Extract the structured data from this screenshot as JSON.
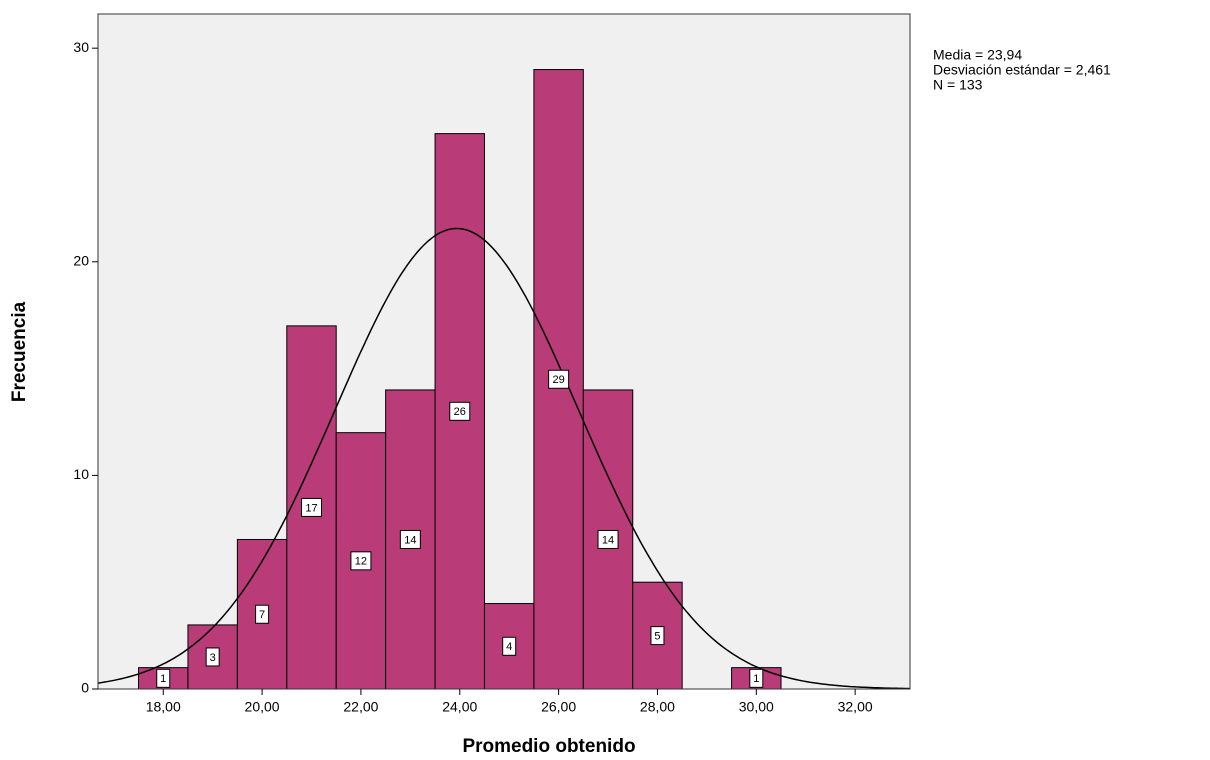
{
  "chart_data": {
    "type": "histogram",
    "x_label": "Promedio obtenido",
    "y_label": "Frecuencia",
    "bins": [
      17.5,
      18.5,
      19.5,
      20.5,
      21.5,
      22.5,
      23.5,
      24.5,
      25.5,
      26.5,
      27.5,
      28.5,
      29.5,
      30.5
    ],
    "values": [
      1,
      3,
      7,
      17,
      12,
      14,
      26,
      4,
      29,
      14,
      5,
      0,
      1
    ],
    "color": "#b93c78",
    "xlim": [
      16.68,
      33.11
    ],
    "ylim": [
      0,
      31.6
    ],
    "xticks": [
      {
        "value": 18,
        "label": "18,00"
      },
      {
        "value": 20,
        "label": "20,00"
      },
      {
        "value": 22,
        "label": "22,00"
      },
      {
        "value": 24,
        "label": "24,00"
      },
      {
        "value": 26,
        "label": "26,00"
      },
      {
        "value": 28,
        "label": "28,00"
      },
      {
        "value": 30,
        "label": "30,00"
      },
      {
        "value": 32,
        "label": "32,00"
      }
    ],
    "yticks": [
      0,
      10,
      20,
      30
    ],
    "annotations": [
      {
        "label": "Media = 23,94",
        "value": 23.94
      },
      {
        "label": "Desviación estándar = 2,461",
        "value": 2.461
      },
      {
        "label": "N = 133",
        "value": 133
      }
    ]
  }
}
